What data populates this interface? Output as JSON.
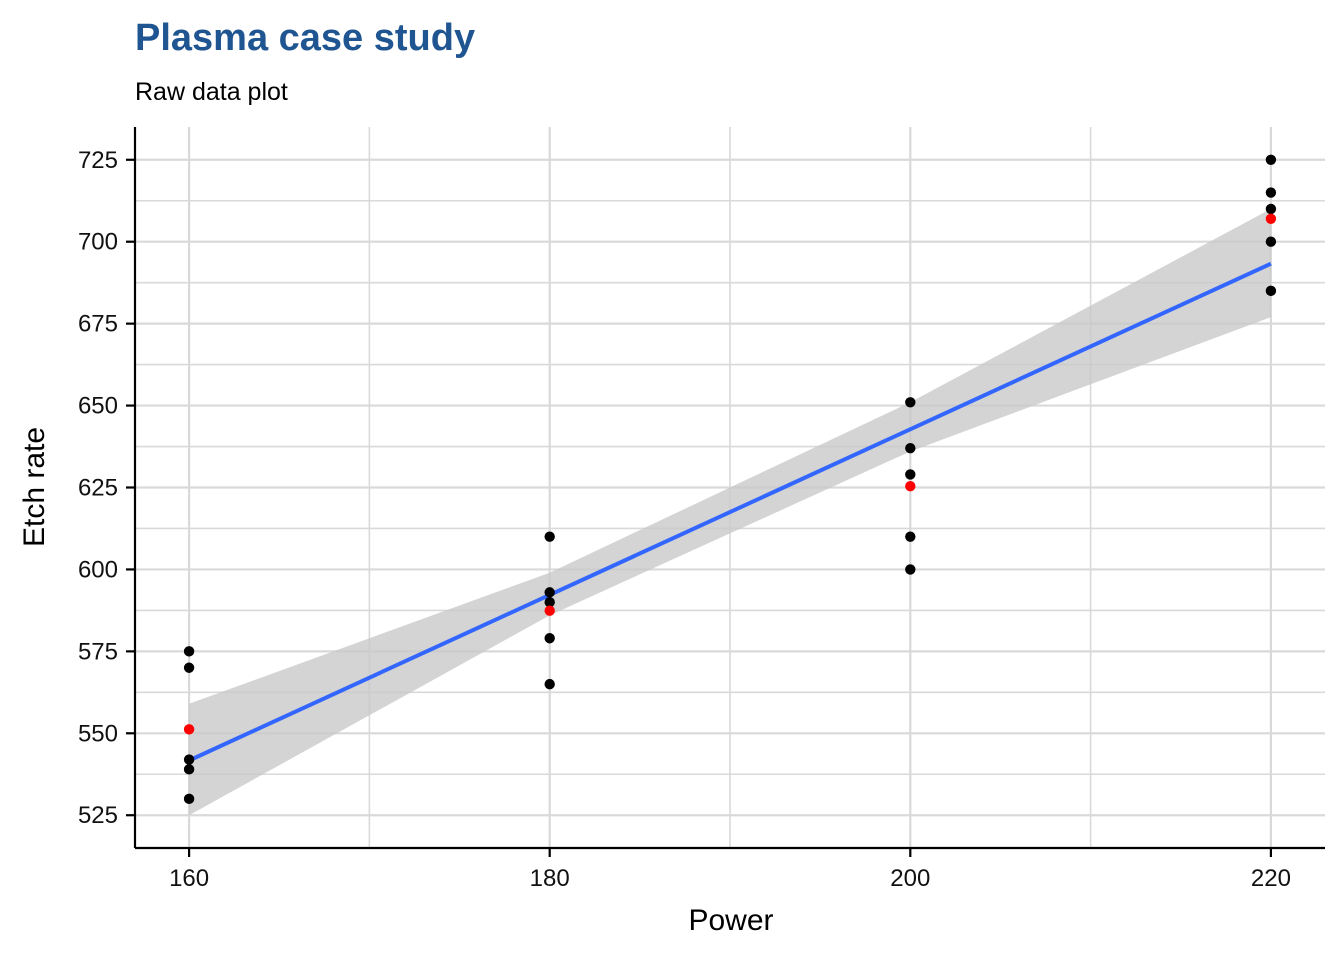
{
  "colors": {
    "title": "#1f5591",
    "fit_line": "#3366ff",
    "band": "#c8c8c8",
    "raw_point": "#000000",
    "mean_point": "#ff0000",
    "grid": "#d9d9d9"
  },
  "chart_data": {
    "type": "scatter",
    "title": "Plasma case study",
    "subtitle": "Raw data plot",
    "xlabel": "Power",
    "ylabel": "Etch rate",
    "xlim": [
      157,
      223
    ],
    "ylim": [
      515,
      735
    ],
    "x_ticks": [
      160,
      180,
      200,
      220
    ],
    "y_ticks": [
      525,
      550,
      575,
      600,
      625,
      650,
      675,
      700,
      725
    ],
    "x_minor_ticks": [
      170,
      190,
      210
    ],
    "y_minor_ticks": [
      537.5,
      562.5,
      587.5,
      612.5,
      637.5,
      662.5,
      687.5,
      712.5
    ],
    "grid": true,
    "legend": "none",
    "series": [
      {
        "values": [
          {
            "x": 160,
            "y": 575
          },
          {
            "x": 160,
            "y": 542
          },
          {
            "x": 160,
            "y": 530
          },
          {
            "x": 160,
            "y": 539
          },
          {
            "x": 160,
            "y": 570
          },
          {
            "x": 180,
            "y": 565
          },
          {
            "x": 180,
            "y": 593
          },
          {
            "x": 180,
            "y": 590
          },
          {
            "x": 180,
            "y": 579
          },
          {
            "x": 180,
            "y": 610
          },
          {
            "x": 200,
            "y": 600
          },
          {
            "x": 200,
            "y": 651
          },
          {
            "x": 200,
            "y": 610
          },
          {
            "x": 200,
            "y": 637
          },
          {
            "x": 200,
            "y": 629
          },
          {
            "x": 220,
            "y": 725
          },
          {
            "x": 220,
            "y": 700
          },
          {
            "x": 220,
            "y": 715
          },
          {
            "x": 220,
            "y": 685
          },
          {
            "x": 220,
            "y": 710
          }
        ]
      },
      {
        "values": [
          {
            "x": 160,
            "y": 551.2
          },
          {
            "x": 180,
            "y": 587.4
          },
          {
            "x": 200,
            "y": 625.4
          },
          {
            "x": 220,
            "y": 707.0
          }
        ]
      },
      {
        "type": "line",
        "values": [
          {
            "x": 160,
            "y": 541.7
          },
          {
            "x": 220,
            "y": 693.3
          }
        ]
      },
      {
        "type": "area",
        "upper": [
          {
            "x": 160,
            "y": 559
          },
          {
            "x": 180,
            "y": 599
          },
          {
            "x": 200,
            "y": 651
          },
          {
            "x": 220,
            "y": 710
          }
        ],
        "lower": [
          {
            "x": 160,
            "y": 525
          },
          {
            "x": 180,
            "y": 586
          },
          {
            "x": 200,
            "y": 636
          },
          {
            "x": 220,
            "y": 677
          }
        ]
      }
    ]
  }
}
